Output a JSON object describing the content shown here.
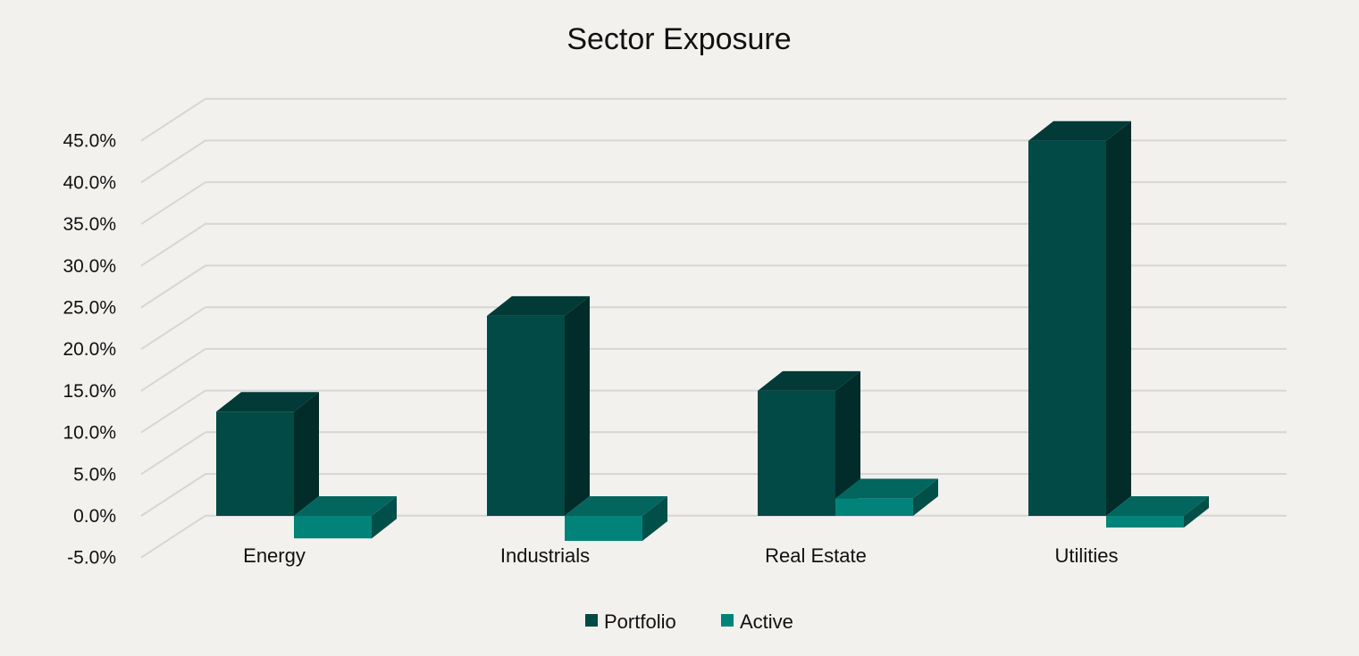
{
  "chart_data": {
    "type": "bar",
    "title": "Sector Exposure",
    "categories": [
      "Energy",
      "Industrials",
      "Real Estate",
      "Utilities"
    ],
    "series": [
      {
        "name": "Portfolio",
        "values": [
          12.5,
          24.0,
          15.0,
          45.0
        ],
        "color": "#014a45"
      },
      {
        "name": "Active",
        "values": [
          -2.7,
          -3.0,
          2.1,
          -1.4
        ],
        "color": "#02837a"
      }
    ],
    "ylim": [
      -5,
      45
    ],
    "ytick_labels": [
      "-5.0%",
      "0.0%",
      "5.0%",
      "10.0%",
      "15.0%",
      "20.0%",
      "25.0%",
      "30.0%",
      "35.0%",
      "40.0%",
      "45.0%"
    ],
    "grid": true,
    "legend_position": "bottom"
  }
}
